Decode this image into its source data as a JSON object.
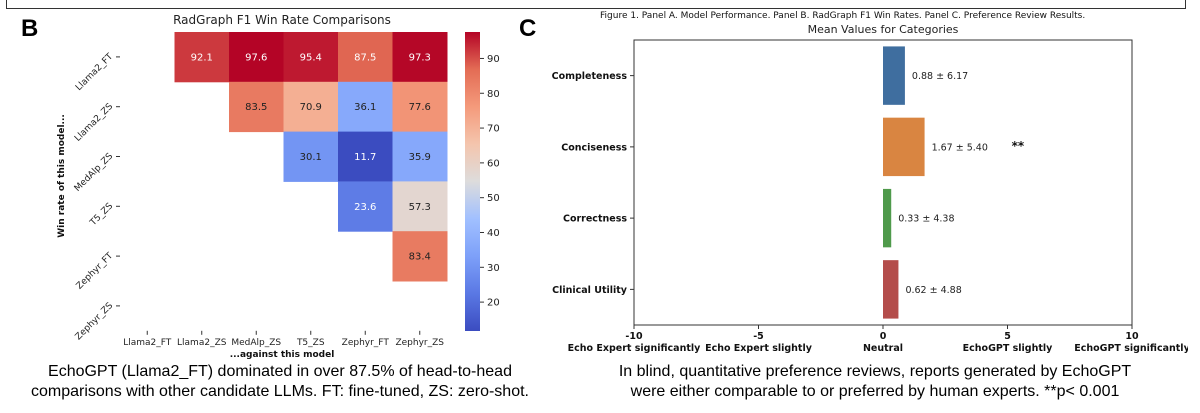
{
  "figure_caption": "Figure 1. Panel A. Model Performance. Panel B. RadGraph F1 Win Rates. Panel C. Preference Review Results.",
  "panels": {
    "b_letter": "B",
    "c_letter": "C"
  },
  "descriptions": {
    "b_line1": "EchoGPT (Llama2_FT) dominated in over 87.5% of head-to-head",
    "b_line2": "comparisons with other candidate LLMs. FT: fine-tuned, ZS: zero-shot.",
    "c_line1": "In blind, quantitative preference reviews, reports generated by EchoGPT",
    "c_line2": "were either comparable to or preferred by human experts. **p< 0.001"
  },
  "chart_data": [
    {
      "type": "heatmap",
      "title": "RadGraph F1 Win Rate Comparisons",
      "xlabel": "...against this model",
      "ylabel": "Win rate of this model...",
      "x_categories": [
        "Llama2_FT",
        "Llama2_ZS",
        "MedAlp_ZS",
        "T5_ZS",
        "Zephyr_FT",
        "Zephyr_ZS"
      ],
      "y_categories": [
        "Llama2_FT",
        "Llama2_ZS",
        "MedAlp_ZS",
        "T5_ZS",
        "Zephyr_FT",
        "Zephyr_ZS"
      ],
      "values": [
        [
          null,
          92.1,
          97.6,
          95.4,
          87.5,
          97.3
        ],
        [
          null,
          null,
          83.5,
          70.9,
          36.1,
          77.6
        ],
        [
          null,
          null,
          null,
          30.1,
          11.7,
          35.9
        ],
        [
          null,
          null,
          null,
          null,
          23.6,
          57.3
        ],
        [
          null,
          null,
          null,
          null,
          null,
          83.4
        ],
        [
          null,
          null,
          null,
          null,
          null,
          null
        ]
      ],
      "colorbar": {
        "min": 11.7,
        "max": 97.6,
        "ticks": [
          20,
          30,
          40,
          50,
          60,
          70,
          80,
          90
        ],
        "colormap": "coolwarm"
      }
    },
    {
      "type": "bar",
      "orientation": "horizontal",
      "title": "Mean Values for Categories",
      "categories": [
        "Completeness",
        "Conciseness",
        "Correctness",
        "Clinical Utility"
      ],
      "values": [
        0.88,
        1.67,
        0.33,
        0.62
      ],
      "labels": [
        "0.88 ± 6.17",
        "1.67 ± 5.40",
        "0.33 ± 4.38",
        "0.62 ± 4.88"
      ],
      "significance": [
        "",
        "**",
        "",
        ""
      ],
      "colors": [
        "#3f6e9f",
        "#d98541",
        "#4f9a4b",
        "#b44d4b"
      ],
      "xlim": [
        -10,
        10
      ],
      "x_ticks": [
        -10,
        -5,
        0,
        5,
        10
      ],
      "x_tick_words": [
        "Echo Expert significantly",
        "Echo Expert slightly",
        "Neutral",
        "EchoGPT slightly",
        "EchoGPT significantly"
      ]
    }
  ]
}
